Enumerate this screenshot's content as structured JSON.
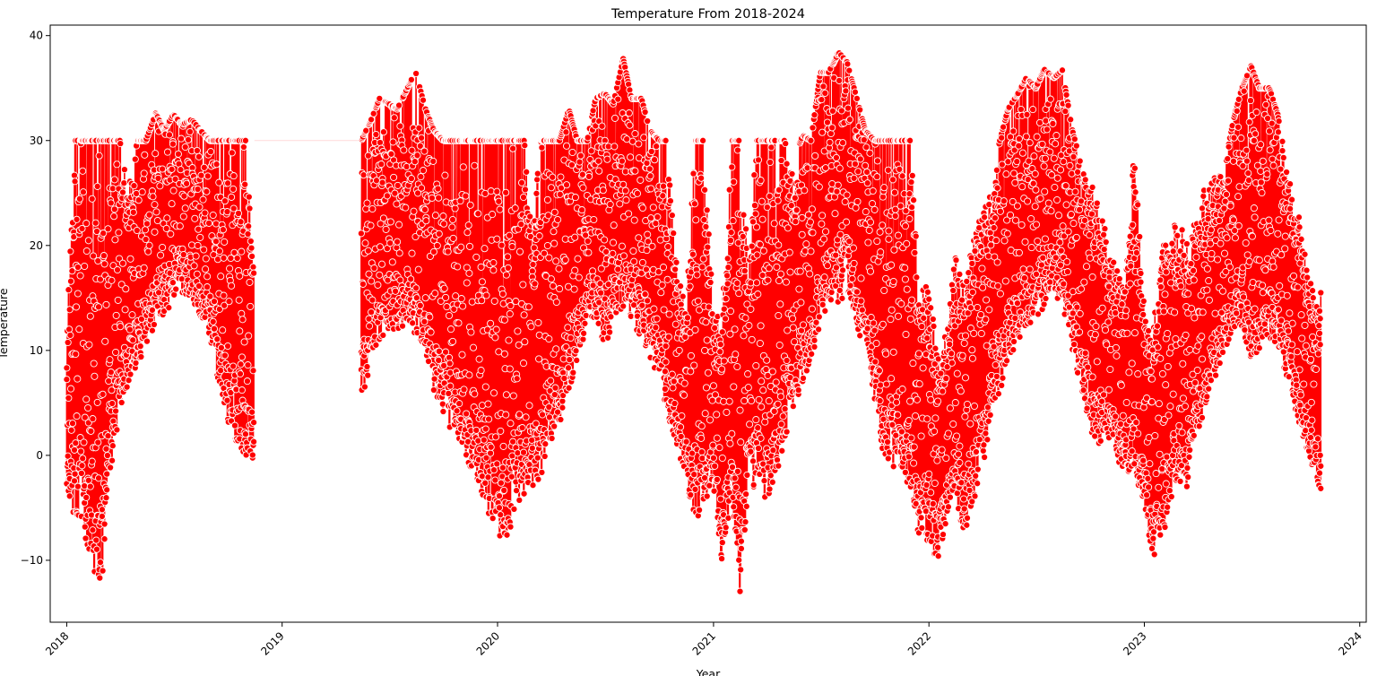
{
  "chart_data": {
    "type": "line",
    "title": "Temperature From 2018-2024",
    "xlabel": "Year",
    "ylabel": "Temperature",
    "x_type": "date",
    "xlim": [
      "2017-12-04",
      "2024-01-12"
    ],
    "ylim": [
      -15.9,
      41.0
    ],
    "x_ticks": [
      "2018",
      "2019",
      "2020",
      "2021",
      "2022",
      "2023",
      "2024"
    ],
    "y_ticks": [
      -10,
      0,
      10,
      20,
      30,
      40
    ],
    "grid": false,
    "legend": "none",
    "marker": "o",
    "colors": {
      "line": "#ff0000",
      "marker_fill": "#ff0000",
      "marker_edge": "#ffffff"
    },
    "series": [
      {
        "kind": "daily_range",
        "points": [
          {
            "x": "2018-01-01",
            "lo": -4.0,
            "hi": 12.0
          },
          {
            "x": "2018-01-15",
            "lo": -6.0,
            "hi": 30.0
          },
          {
            "x": "2018-02-01",
            "lo": -8.5,
            "hi": 30.0
          },
          {
            "x": "2018-02-15",
            "lo": -11.0,
            "hi": 30.0
          },
          {
            "x": "2018-03-01",
            "lo": -13.3,
            "hi": 30.0
          },
          {
            "x": "2018-03-15",
            "lo": -2.0,
            "hi": 30.0
          },
          {
            "x": "2018-04-01",
            "lo": 4.0,
            "hi": 30.0
          },
          {
            "x": "2018-04-15",
            "lo": 6.0,
            "hi": 26.0
          },
          {
            "x": "2018-05-01",
            "lo": 8.5,
            "hi": 30.0
          },
          {
            "x": "2018-05-15",
            "lo": 10.5,
            "hi": 30.0
          },
          {
            "x": "2018-06-01",
            "lo": 12.5,
            "hi": 32.6
          },
          {
            "x": "2018-06-15",
            "lo": 13.5,
            "hi": 31.0
          },
          {
            "x": "2018-07-01",
            "lo": 14.5,
            "hi": 32.5
          },
          {
            "x": "2018-07-15",
            "lo": 15.5,
            "hi": 31.5
          },
          {
            "x": "2018-08-01",
            "lo": 15.0,
            "hi": 32.0
          },
          {
            "x": "2018-08-15",
            "lo": 13.0,
            "hi": 31.0
          },
          {
            "x": "2018-09-01",
            "lo": 11.0,
            "hi": 30.0
          },
          {
            "x": "2018-09-15",
            "lo": 7.0,
            "hi": 30.0
          },
          {
            "x": "2018-10-01",
            "lo": 3.0,
            "hi": 30.0
          },
          {
            "x": "2018-10-15",
            "lo": 1.0,
            "hi": 30.0
          },
          {
            "x": "2018-11-01",
            "lo": 0.0,
            "hi": 30.0
          },
          {
            "x": "2018-11-15",
            "lo": -1.0,
            "hi": 18.0
          },
          {
            "x": "2019-05-15",
            "lo": 4.5,
            "hi": 30.0
          },
          {
            "x": "2019-06-01",
            "lo": 9.0,
            "hi": 32.0
          },
          {
            "x": "2019-06-15",
            "lo": 11.0,
            "hi": 34.0
          },
          {
            "x": "2019-07-01",
            "lo": 12.0,
            "hi": 33.5
          },
          {
            "x": "2019-07-15",
            "lo": 12.0,
            "hi": 33.0
          },
          {
            "x": "2019-08-01",
            "lo": 12.5,
            "hi": 35.0
          },
          {
            "x": "2019-08-15",
            "lo": 11.5,
            "hi": 36.6
          },
          {
            "x": "2019-09-01",
            "lo": 10.0,
            "hi": 33.0
          },
          {
            "x": "2019-09-15",
            "lo": 6.0,
            "hi": 31.0
          },
          {
            "x": "2019-10-01",
            "lo": 4.0,
            "hi": 30.0
          },
          {
            "x": "2019-10-15",
            "lo": 2.0,
            "hi": 30.0
          },
          {
            "x": "2019-11-01",
            "lo": 1.0,
            "hi": 30.0
          },
          {
            "x": "2019-11-15",
            "lo": -1.0,
            "hi": 30.0
          },
          {
            "x": "2019-12-01",
            "lo": -3.0,
            "hi": 30.0
          },
          {
            "x": "2019-12-15",
            "lo": -6.0,
            "hi": 30.0
          },
          {
            "x": "2020-01-01",
            "lo": -8.0,
            "hi": 30.0
          },
          {
            "x": "2020-01-15",
            "lo": -8.5,
            "hi": 30.0
          },
          {
            "x": "2020-02-01",
            "lo": -5.0,
            "hi": 30.0
          },
          {
            "x": "2020-02-15",
            "lo": -4.0,
            "hi": 30.0
          },
          {
            "x": "2020-03-01",
            "lo": -3.5,
            "hi": 23.0
          },
          {
            "x": "2020-03-15",
            "lo": -2.0,
            "hi": 30.0
          },
          {
            "x": "2020-04-01",
            "lo": 1.0,
            "hi": 30.0
          },
          {
            "x": "2020-04-15",
            "lo": 3.0,
            "hi": 30.0
          },
          {
            "x": "2020-05-01",
            "lo": 6.0,
            "hi": 33.0
          },
          {
            "x": "2020-05-15",
            "lo": 9.0,
            "hi": 30.0
          },
          {
            "x": "2020-06-01",
            "lo": 12.0,
            "hi": 30.0
          },
          {
            "x": "2020-06-15",
            "lo": 13.0,
            "hi": 34.0
          },
          {
            "x": "2020-07-01",
            "lo": 10.0,
            "hi": 34.5
          },
          {
            "x": "2020-07-15",
            "lo": 13.0,
            "hi": 33.5
          },
          {
            "x": "2020-08-01",
            "lo": 14.0,
            "hi": 37.8
          },
          {
            "x": "2020-08-15",
            "lo": 13.0,
            "hi": 34.0
          },
          {
            "x": "2020-09-01",
            "lo": 11.0,
            "hi": 34.0
          },
          {
            "x": "2020-09-15",
            "lo": 9.0,
            "hi": 31.0
          },
          {
            "x": "2020-10-01",
            "lo": 7.0,
            "hi": 30.0
          },
          {
            "x": "2020-10-15",
            "lo": 4.0,
            "hi": 30.0
          },
          {
            "x": "2020-11-01",
            "lo": 0.5,
            "hi": 18.0
          },
          {
            "x": "2020-11-15",
            "lo": -2.0,
            "hi": 14.0
          },
          {
            "x": "2020-12-01",
            "lo": -7.0,
            "hi": 30.0
          },
          {
            "x": "2020-12-15",
            "lo": -5.0,
            "hi": 30.0
          },
          {
            "x": "2021-01-01",
            "lo": -3.0,
            "hi": 14.0
          },
          {
            "x": "2021-01-15",
            "lo": -10.0,
            "hi": 13.0
          },
          {
            "x": "2021-02-01",
            "lo": -4.0,
            "hi": 30.0
          },
          {
            "x": "2021-02-15",
            "lo": -13.0,
            "hi": 30.0
          },
          {
            "x": "2021-03-01",
            "lo": -3.0,
            "hi": 19.0
          },
          {
            "x": "2021-03-15",
            "lo": -3.0,
            "hi": 30.0
          },
          {
            "x": "2021-04-01",
            "lo": -4.5,
            "hi": 30.0
          },
          {
            "x": "2021-04-15",
            "lo": -3.0,
            "hi": 30.0
          },
          {
            "x": "2021-05-01",
            "lo": 1.0,
            "hi": 30.0
          },
          {
            "x": "2021-05-15",
            "lo": 4.0,
            "hi": 28.0
          },
          {
            "x": "2021-06-01",
            "lo": 6.5,
            "hi": 30.5
          },
          {
            "x": "2021-06-15",
            "lo": 9.0,
            "hi": 30.0
          },
          {
            "x": "2021-07-01",
            "lo": 12.0,
            "hi": 36.5
          },
          {
            "x": "2021-07-15",
            "lo": 15.0,
            "hi": 36.5
          },
          {
            "x": "2021-08-01",
            "lo": 14.0,
            "hi": 38.4
          },
          {
            "x": "2021-08-15",
            "lo": 16.0,
            "hi": 37.5
          },
          {
            "x": "2021-09-01",
            "lo": 12.5,
            "hi": 34.0
          },
          {
            "x": "2021-09-15",
            "lo": 9.0,
            "hi": 31.0
          },
          {
            "x": "2021-10-01",
            "lo": 3.0,
            "hi": 30.0
          },
          {
            "x": "2021-10-15",
            "lo": 0.0,
            "hi": 30.0
          },
          {
            "x": "2021-11-01",
            "lo": -1.5,
            "hi": 30.0
          },
          {
            "x": "2021-11-15",
            "lo": -2.0,
            "hi": 30.0
          },
          {
            "x": "2021-12-01",
            "lo": -3.0,
            "hi": 30.0
          },
          {
            "x": "2021-12-15",
            "lo": -8.0,
            "hi": 16.0
          },
          {
            "x": "2022-01-01",
            "lo": -8.5,
            "hi": 17.0
          },
          {
            "x": "2022-01-15",
            "lo": -10.2,
            "hi": 9.0
          },
          {
            "x": "2022-02-01",
            "lo": -6.0,
            "hi": 12.0
          },
          {
            "x": "2022-02-15",
            "lo": -4.0,
            "hi": 19.5
          },
          {
            "x": "2022-03-01",
            "lo": -8.0,
            "hi": 16.0
          },
          {
            "x": "2022-03-15",
            "lo": -5.0,
            "hi": 20.0
          },
          {
            "x": "2022-04-01",
            "lo": -1.5,
            "hi": 25.0
          },
          {
            "x": "2022-04-15",
            "lo": 3.0,
            "hi": 25.0
          },
          {
            "x": "2022-05-01",
            "lo": 6.0,
            "hi": 30.0
          },
          {
            "x": "2022-05-15",
            "lo": 9.0,
            "hi": 33.0
          },
          {
            "x": "2022-06-01",
            "lo": 11.0,
            "hi": 34.5
          },
          {
            "x": "2022-06-15",
            "lo": 12.0,
            "hi": 36.0
          },
          {
            "x": "2022-07-01",
            "lo": 13.0,
            "hi": 35.0
          },
          {
            "x": "2022-07-15",
            "lo": 14.0,
            "hi": 36.8
          },
          {
            "x": "2022-08-01",
            "lo": 15.0,
            "hi": 36.0
          },
          {
            "x": "2022-08-15",
            "lo": 14.0,
            "hi": 36.7
          },
          {
            "x": "2022-09-01",
            "lo": 10.0,
            "hi": 31.0
          },
          {
            "x": "2022-09-15",
            "lo": 6.0,
            "hi": 28.0
          },
          {
            "x": "2022-10-01",
            "lo": 2.0,
            "hi": 26.0
          },
          {
            "x": "2022-10-15",
            "lo": 1.0,
            "hi": 25.5
          },
          {
            "x": "2022-11-01",
            "lo": 1.5,
            "hi": 20.0
          },
          {
            "x": "2022-11-15",
            "lo": -1.0,
            "hi": 18.0
          },
          {
            "x": "2022-12-01",
            "lo": -1.5,
            "hi": 18.0
          },
          {
            "x": "2022-12-15",
            "lo": -2.0,
            "hi": 29.7
          },
          {
            "x": "2023-01-01",
            "lo": -4.5,
            "hi": 14.0
          },
          {
            "x": "2023-01-15",
            "lo": -10.0,
            "hi": 12.0
          },
          {
            "x": "2023-02-01",
            "lo": -8.0,
            "hi": 20.0
          },
          {
            "x": "2023-02-15",
            "lo": -4.0,
            "hi": 22.0
          },
          {
            "x": "2023-03-01",
            "lo": -3.5,
            "hi": 22.7
          },
          {
            "x": "2023-03-15",
            "lo": -3.0,
            "hi": 20.0
          },
          {
            "x": "2023-04-01",
            "lo": 1.0,
            "hi": 23.0
          },
          {
            "x": "2023-04-15",
            "lo": 5.0,
            "hi": 26.0
          },
          {
            "x": "2023-05-01",
            "lo": 7.0,
            "hi": 26.5
          },
          {
            "x": "2023-05-15",
            "lo": 10.0,
            "hi": 27.0
          },
          {
            "x": "2023-06-01",
            "lo": 11.5,
            "hi": 32.0
          },
          {
            "x": "2023-06-15",
            "lo": 12.0,
            "hi": 35.0
          },
          {
            "x": "2023-07-01",
            "lo": 9.0,
            "hi": 37.1
          },
          {
            "x": "2023-07-15",
            "lo": 10.0,
            "hi": 35.0
          },
          {
            "x": "2023-08-01",
            "lo": 11.0,
            "hi": 35.0
          },
          {
            "x": "2023-08-15",
            "lo": 10.5,
            "hi": 32.5
          },
          {
            "x": "2023-09-01",
            "lo": 7.0,
            "hi": 27.0
          },
          {
            "x": "2023-09-15",
            "lo": 3.5,
            "hi": 25.0
          },
          {
            "x": "2023-10-01",
            "lo": 1.0,
            "hi": 19.0
          },
          {
            "x": "2023-10-15",
            "lo": -1.5,
            "hi": 16.5
          },
          {
            "x": "2023-10-28",
            "lo": -4.2,
            "hi": 16.5
          }
        ]
      }
    ]
  }
}
